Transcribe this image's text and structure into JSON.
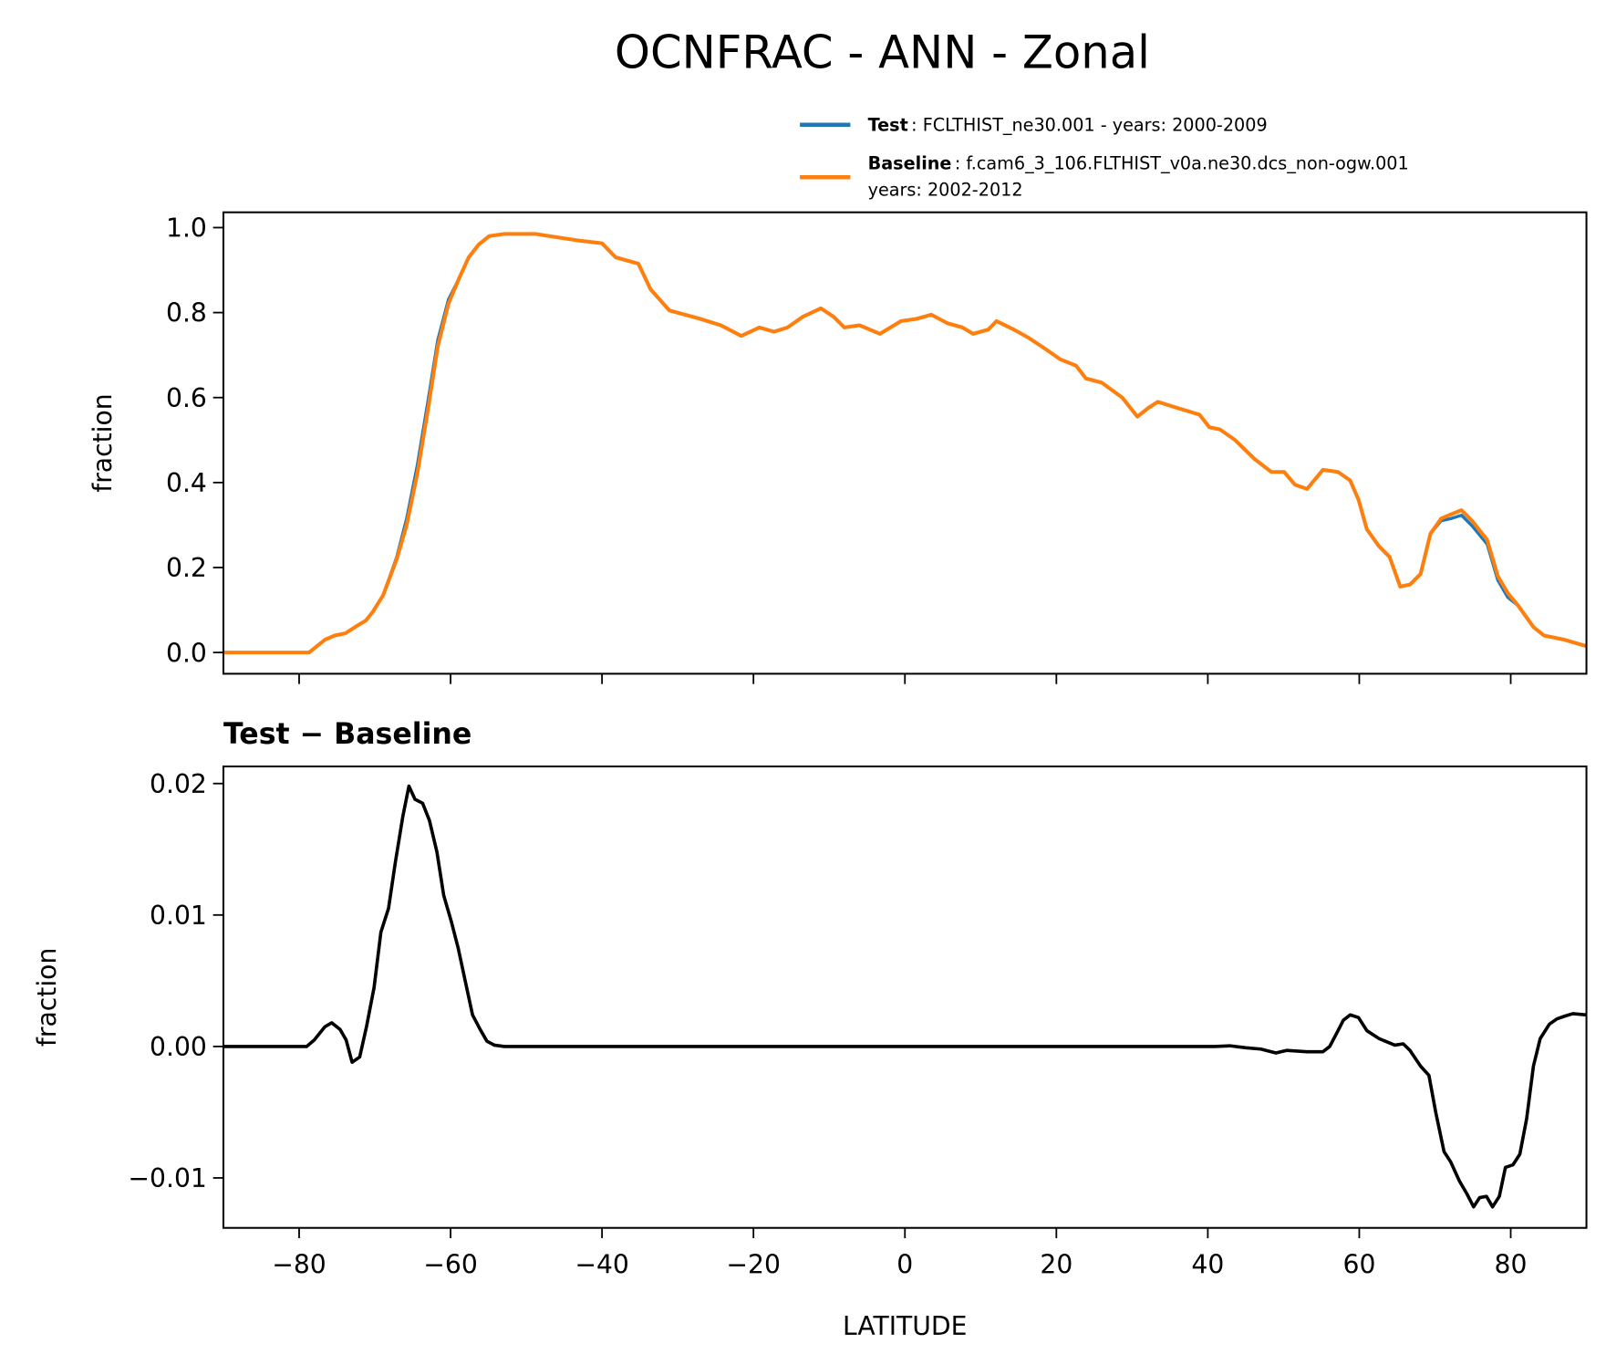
{
  "chart_data": [
    {
      "type": "line",
      "title": "OCNFRAC - ANN - Zonal",
      "xlabel": "",
      "ylabel": "fraction",
      "xlim": [
        -90,
        90
      ],
      "ylim": [
        -0.05,
        1.036
      ],
      "xticks": [
        -80,
        -60,
        -40,
        -20,
        0,
        20,
        40,
        60,
        80
      ],
      "xtick_labels_visible": false,
      "yticks": [
        0.0,
        0.2,
        0.4,
        0.6,
        0.8,
        1.0
      ],
      "ytick_labels": [
        "0.0",
        "0.2",
        "0.4",
        "0.6",
        "0.8",
        "1.0"
      ],
      "grid": false,
      "legend": {
        "placement": "above-right",
        "entries": [
          {
            "bold": "Test",
            "text": ": FCLTHIST_ne30.001 - years: 2000-2009",
            "color": "#1f77b4"
          },
          {
            "bold": "Baseline",
            "text": ": f.cam6_3_106.FLTHIST_v0a.ne30.dcs_non-ogw.001",
            "text2": "years: 2002-2012",
            "color": "#ff7f0e"
          }
        ]
      },
      "x": [
        -90,
        -78.7,
        -76.6,
        -75.3,
        -73.9,
        -72.6,
        -71.2,
        -70.3,
        -68.9,
        -67.1,
        -65.8,
        -64.4,
        -63.0,
        -61.7,
        -60.3,
        -58.9,
        -57.6,
        -56.3,
        -54.9,
        -52.9,
        -48.8,
        -43.3,
        -40.0,
        -38.2,
        -35.2,
        -33.6,
        -31.1,
        -27.0,
        -24.3,
        -21.6,
        -19.2,
        -17.3,
        -15.5,
        -13.5,
        -11.1,
        -9.4,
        -8.0,
        -6.0,
        -3.3,
        -0.5,
        1.5,
        3.5,
        5.6,
        7.6,
        9.0,
        11.0,
        12.1,
        14.4,
        16.4,
        18.5,
        20.5,
        22.6,
        23.9,
        26.0,
        28.7,
        30.7,
        32.1,
        33.4,
        36.1,
        38.9,
        40.2,
        41.6,
        43.6,
        46.2,
        48.4,
        50.1,
        51.5,
        53.1,
        55.2,
        57.2,
        58.8,
        59.9,
        61.0,
        62.6,
        64.0,
        65.4,
        66.7,
        68.1,
        69.4,
        70.8,
        72.1,
        73.5,
        74.9,
        76.9,
        78.3,
        79.6,
        81.0,
        83.0,
        84.4,
        87.1,
        90.0
      ],
      "series": [
        {
          "name": "Test",
          "color": "#1f77b4",
          "values": [
            0,
            0,
            0.03,
            0.04,
            0.045,
            0.06,
            0.075,
            0.095,
            0.135,
            0.225,
            0.315,
            0.44,
            0.59,
            0.735,
            0.83,
            0.88,
            0.93,
            0.96,
            0.98,
            0.985,
            0.985,
            0.97,
            0.963,
            0.93,
            0.915,
            0.855,
            0.805,
            0.785,
            0.77,
            0.745,
            0.765,
            0.755,
            0.765,
            0.79,
            0.81,
            0.79,
            0.765,
            0.77,
            0.75,
            0.78,
            0.785,
            0.795,
            0.775,
            0.765,
            0.75,
            0.76,
            0.78,
            0.76,
            0.74,
            0.715,
            0.69,
            0.675,
            0.645,
            0.635,
            0.6,
            0.555,
            0.575,
            0.59,
            0.575,
            0.56,
            0.53,
            0.525,
            0.5,
            0.455,
            0.425,
            0.425,
            0.395,
            0.385,
            0.43,
            0.425,
            0.405,
            0.36,
            0.29,
            0.25,
            0.225,
            0.155,
            0.16,
            0.185,
            0.28,
            0.31,
            0.315,
            0.323,
            0.298,
            0.255,
            0.17,
            0.13,
            0.11,
            0.06,
            0.04,
            0.03,
            0.015
          ]
        },
        {
          "name": "Baseline",
          "color": "#ff7f0e",
          "values": [
            0,
            0,
            0.03,
            0.04,
            0.045,
            0.06,
            0.075,
            0.095,
            0.135,
            0.22,
            0.3,
            0.42,
            0.57,
            0.72,
            0.82,
            0.88,
            0.93,
            0.96,
            0.98,
            0.985,
            0.985,
            0.97,
            0.963,
            0.93,
            0.915,
            0.855,
            0.805,
            0.785,
            0.77,
            0.745,
            0.765,
            0.755,
            0.765,
            0.79,
            0.81,
            0.79,
            0.765,
            0.77,
            0.75,
            0.78,
            0.785,
            0.795,
            0.775,
            0.765,
            0.75,
            0.76,
            0.78,
            0.76,
            0.74,
            0.715,
            0.69,
            0.675,
            0.645,
            0.635,
            0.6,
            0.555,
            0.575,
            0.59,
            0.575,
            0.56,
            0.53,
            0.525,
            0.5,
            0.455,
            0.425,
            0.425,
            0.395,
            0.385,
            0.43,
            0.425,
            0.405,
            0.36,
            0.29,
            0.25,
            0.225,
            0.155,
            0.16,
            0.185,
            0.28,
            0.315,
            0.325,
            0.335,
            0.31,
            0.265,
            0.18,
            0.14,
            0.11,
            0.06,
            0.04,
            0.03,
            0.015
          ]
        }
      ]
    },
    {
      "type": "line",
      "title": "Test − Baseline",
      "xlabel": "LATITUDE",
      "ylabel": "fraction",
      "xlim": [
        -90,
        90
      ],
      "ylim": [
        -0.0138,
        0.0213
      ],
      "xticks": [
        -80,
        -60,
        -40,
        -20,
        0,
        20,
        40,
        60,
        80
      ],
      "xtick_labels": [
        "−80",
        "−60",
        "−40",
        "−20",
        "0",
        "20",
        "40",
        "60",
        "80"
      ],
      "yticks": [
        -0.01,
        0.0,
        0.01,
        0.02
      ],
      "ytick_labels": [
        "−0.01",
        "0.00",
        "0.01",
        "0.02"
      ],
      "grid": false,
      "series": [
        {
          "color": "#000000",
          "x": [
            -90,
            -79,
            -78.0,
            -76.6,
            -75.7,
            -74.6,
            -73.8,
            -73.0,
            -72.0,
            -71.1,
            -70.1,
            -69.2,
            -68.2,
            -67.3,
            -66.3,
            -65.5,
            -64.7,
            -63.7,
            -62.8,
            -61.8,
            -60.9,
            -59.9,
            -59.0,
            -58.0,
            -57.1,
            -56.1,
            -55.2,
            -54.2,
            -52.9,
            40.9,
            42.9,
            45.0,
            47.0,
            49.0,
            50.4,
            53.1,
            55.2,
            56.1,
            57.2,
            57.9,
            58.8,
            59.9,
            61.0,
            62.6,
            64.7,
            65.8,
            66.7,
            68.1,
            69.2,
            70.1,
            71.2,
            72.1,
            73.2,
            74.2,
            75.1,
            75.9,
            76.8,
            77.6,
            78.5,
            79.3,
            80.3,
            81.2,
            82.1,
            83.0,
            83.9,
            85.1,
            86.1,
            87.1,
            88.2,
            90.0
          ],
          "values": [
            0,
            0,
            0.0005,
            0.0015,
            0.0018,
            0.0013,
            0.0005,
            -0.0012,
            -0.0008,
            0.0015,
            0.0045,
            0.0087,
            0.0105,
            0.014,
            0.0175,
            0.0198,
            0.0188,
            0.0185,
            0.0172,
            0.0148,
            0.0115,
            0.0095,
            0.0075,
            0.0048,
            0.0024,
            0.0013,
            0.0004,
            0.0001,
            0,
            0,
            5e-05,
            -0.0001,
            -0.0002,
            -0.0005,
            -0.0003,
            -0.0004,
            -0.0004,
            0,
            0.0012,
            0.002,
            0.0024,
            0.0022,
            0.0012,
            0.0006,
            0.0001,
            0.0002,
            -0.0003,
            -0.0015,
            -0.0022,
            -0.005,
            -0.008,
            -0.0088,
            -0.0102,
            -0.0112,
            -0.0122,
            -0.0115,
            -0.0114,
            -0.0122,
            -0.0114,
            -0.0092,
            -0.009,
            -0.0082,
            -0.0055,
            -0.0015,
            0.0006,
            0.0017,
            0.0021,
            0.0023,
            0.0025,
            0.0024
          ]
        }
      ]
    }
  ]
}
